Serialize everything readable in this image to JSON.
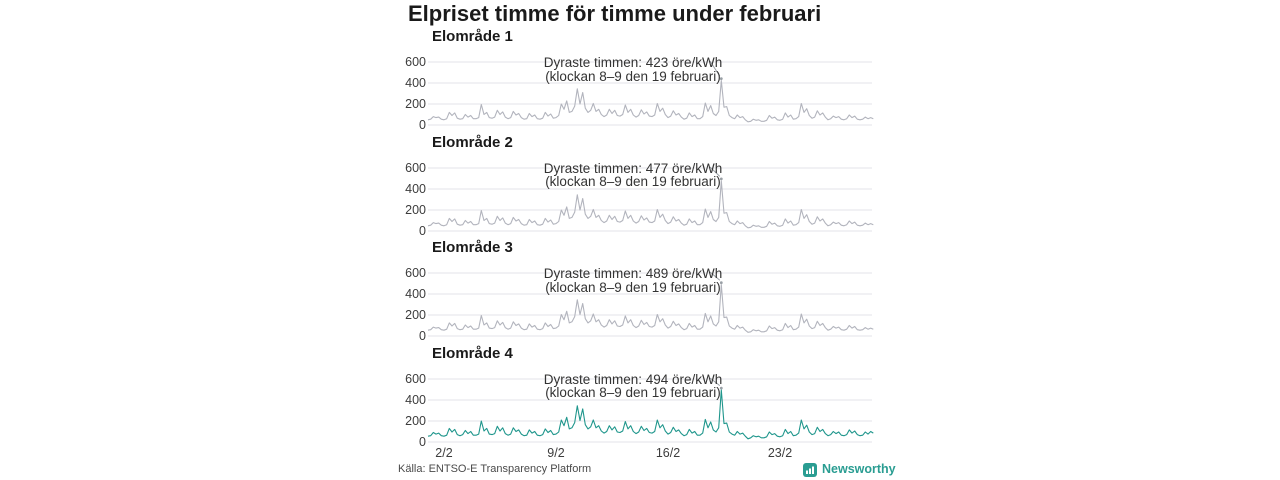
{
  "page": {
    "title": "Elpriset timme för timme under februari"
  },
  "footer": {
    "source": "Källa: ENTSO-E Transparency Platform",
    "brand": "Newsworthy"
  },
  "colors": {
    "background": "#ffffff",
    "grid": "#e3e3e8",
    "line_gray": "#b2b4bd",
    "line_teal": "#1f968c",
    "leader": "#9aa0a6",
    "text_dark": "#1a1a1a",
    "text_annotation": "#333333",
    "text_axis": "#3c3c3c",
    "brand_teal": "#2a9d92"
  },
  "chart_data": [
    {
      "type": "line",
      "title": "Elområde 1",
      "unit": "öre/kWh",
      "line_color": "#b2b4bd",
      "y_ticks": [
        600,
        400,
        200,
        0
      ],
      "ylim": [
        0,
        650
      ],
      "x_start": "1/2",
      "days": 28,
      "points_per_day": 6,
      "x_ticks": [
        {
          "label": "2/2",
          "hour": 24
        },
        {
          "label": "9/2",
          "hour": 192
        },
        {
          "label": "16/2",
          "hour": 360
        },
        {
          "label": "23/2",
          "hour": 528
        }
      ],
      "show_x_axis": false,
      "peak": {
        "value": 423,
        "label_line1": "Dyraste timmen: 423 öre/kWh",
        "label_line2": "(klockan 8–9 den 19 februari)"
      },
      "values": [
        50,
        55,
        80,
        70,
        75,
        55,
        50,
        60,
        120,
        90,
        115,
        65,
        55,
        60,
        100,
        75,
        90,
        60,
        60,
        70,
        195,
        100,
        120,
        70,
        65,
        75,
        140,
        100,
        125,
        75,
        60,
        70,
        130,
        95,
        110,
        70,
        55,
        60,
        110,
        80,
        95,
        60,
        55,
        65,
        120,
        85,
        105,
        65,
        70,
        90,
        200,
        150,
        230,
        120,
        130,
        180,
        345,
        200,
        310,
        160,
        120,
        140,
        205,
        130,
        150,
        100,
        80,
        95,
        150,
        110,
        140,
        90,
        85,
        100,
        190,
        120,
        150,
        95,
        75,
        90,
        145,
        105,
        125,
        85,
        80,
        95,
        205,
        130,
        160,
        100,
        70,
        85,
        135,
        95,
        110,
        75,
        55,
        65,
        115,
        80,
        95,
        60,
        60,
        80,
        210,
        130,
        185,
        110,
        90,
        130,
        423,
        170,
        175,
        90,
        70,
        60,
        95,
        70,
        80,
        50,
        30,
        35,
        55,
        45,
        50,
        35,
        35,
        45,
        90,
        65,
        75,
        50,
        45,
        55,
        115,
        75,
        95,
        55,
        60,
        80,
        205,
        120,
        155,
        90,
        65,
        75,
        135,
        95,
        115,
        75,
        50,
        60,
        85,
        70,
        80,
        55,
        50,
        60,
        95,
        70,
        85,
        55,
        50,
        55,
        75,
        60,
        70,
        60
      ]
    },
    {
      "type": "line",
      "title": "Elområde 2",
      "unit": "öre/kWh",
      "line_color": "#b2b4bd",
      "y_ticks": [
        600,
        400,
        200,
        0
      ],
      "ylim": [
        0,
        650
      ],
      "x_start": "1/2",
      "days": 28,
      "points_per_day": 6,
      "x_ticks": [
        {
          "label": "2/2",
          "hour": 24
        },
        {
          "label": "9/2",
          "hour": 192
        },
        {
          "label": "16/2",
          "hour": 360
        },
        {
          "label": "23/2",
          "hour": 528
        }
      ],
      "show_x_axis": false,
      "peak": {
        "value": 477,
        "label_line1": "Dyraste timmen: 477 öre/kWh",
        "label_line2": "(klockan 8–9 den 19 februari)"
      },
      "values": [
        50,
        55,
        80,
        70,
        75,
        55,
        50,
        60,
        120,
        90,
        115,
        65,
        55,
        60,
        100,
        75,
        90,
        60,
        60,
        70,
        195,
        100,
        120,
        70,
        65,
        75,
        140,
        100,
        125,
        75,
        60,
        70,
        130,
        95,
        110,
        70,
        55,
        60,
        110,
        80,
        95,
        60,
        55,
        65,
        120,
        85,
        105,
        65,
        70,
        90,
        200,
        150,
        230,
        120,
        130,
        180,
        345,
        200,
        310,
        160,
        120,
        140,
        205,
        130,
        150,
        100,
        80,
        95,
        150,
        110,
        140,
        90,
        85,
        100,
        190,
        120,
        150,
        95,
        75,
        90,
        145,
        105,
        125,
        85,
        80,
        95,
        205,
        130,
        160,
        100,
        70,
        85,
        135,
        95,
        110,
        75,
        55,
        65,
        115,
        80,
        95,
        60,
        60,
        80,
        210,
        130,
        185,
        110,
        90,
        130,
        477,
        170,
        175,
        90,
        70,
        60,
        95,
        70,
        80,
        50,
        30,
        35,
        55,
        45,
        50,
        35,
        35,
        45,
        90,
        65,
        75,
        50,
        45,
        55,
        115,
        75,
        95,
        55,
        60,
        80,
        205,
        120,
        155,
        90,
        65,
        75,
        135,
        95,
        115,
        75,
        50,
        60,
        85,
        70,
        80,
        55,
        50,
        60,
        95,
        70,
        85,
        55,
        50,
        55,
        75,
        60,
        70,
        60
      ]
    },
    {
      "type": "line",
      "title": "Elområde 3",
      "unit": "öre/kWh",
      "line_color": "#b2b4bd",
      "y_ticks": [
        600,
        400,
        200,
        0
      ],
      "ylim": [
        0,
        650
      ],
      "x_start": "1/2",
      "days": 28,
      "points_per_day": 6,
      "x_ticks": [
        {
          "label": "2/2",
          "hour": 24
        },
        {
          "label": "9/2",
          "hour": 192
        },
        {
          "label": "16/2",
          "hour": 360
        },
        {
          "label": "23/2",
          "hour": 528
        }
      ],
      "show_x_axis": false,
      "peak": {
        "value": 489,
        "label_line1": "Dyraste timmen: 489 öre/kWh",
        "label_line2": "(klockan 8–9 den 19 februari)"
      },
      "values": [
        55,
        60,
        85,
        75,
        80,
        60,
        55,
        65,
        125,
        95,
        120,
        70,
        60,
        65,
        105,
        80,
        95,
        65,
        65,
        75,
        195,
        105,
        125,
        75,
        70,
        80,
        145,
        105,
        130,
        80,
        65,
        75,
        135,
        100,
        115,
        75,
        60,
        65,
        115,
        85,
        100,
        65,
        60,
        70,
        125,
        90,
        110,
        70,
        75,
        95,
        205,
        155,
        235,
        125,
        135,
        185,
        345,
        205,
        310,
        165,
        125,
        145,
        210,
        135,
        155,
        105,
        85,
        100,
        155,
        115,
        145,
        95,
        90,
        105,
        190,
        125,
        155,
        100,
        80,
        95,
        150,
        110,
        130,
        90,
        85,
        100,
        205,
        135,
        165,
        105,
        75,
        90,
        140,
        100,
        115,
        80,
        60,
        70,
        120,
        85,
        100,
        65,
        65,
        85,
        215,
        135,
        190,
        115,
        95,
        135,
        489,
        175,
        180,
        95,
        75,
        65,
        100,
        75,
        85,
        55,
        35,
        40,
        60,
        50,
        55,
        40,
        40,
        50,
        95,
        70,
        80,
        55,
        50,
        60,
        120,
        80,
        100,
        60,
        65,
        85,
        210,
        125,
        160,
        95,
        70,
        80,
        140,
        100,
        120,
        80,
        55,
        65,
        90,
        75,
        85,
        60,
        55,
        65,
        100,
        75,
        90,
        60,
        55,
        60,
        80,
        65,
        75,
        65
      ]
    },
    {
      "type": "line",
      "title": "Elområde 4",
      "unit": "öre/kWh",
      "line_color": "#1f968c",
      "y_ticks": [
        600,
        400,
        200,
        0
      ],
      "ylim": [
        0,
        650
      ],
      "x_start": "1/2",
      "days": 28,
      "points_per_day": 6,
      "x_ticks": [
        {
          "label": "2/2",
          "hour": 24
        },
        {
          "label": "9/2",
          "hour": 192
        },
        {
          "label": "16/2",
          "hour": 360
        },
        {
          "label": "23/2",
          "hour": 528
        }
      ],
      "show_x_axis": true,
      "peak": {
        "value": 494,
        "label_line1": "Dyraste timmen: 494 öre/kWh",
        "label_line2": "(klockan 8–9 den 19 februari)"
      },
      "values": [
        55,
        60,
        90,
        75,
        85,
        60,
        55,
        65,
        130,
        95,
        120,
        70,
        60,
        70,
        110,
        80,
        100,
        65,
        65,
        75,
        200,
        105,
        130,
        75,
        70,
        80,
        150,
        105,
        135,
        80,
        65,
        75,
        135,
        100,
        115,
        75,
        60,
        65,
        115,
        85,
        100,
        65,
        60,
        70,
        125,
        90,
        110,
        70,
        75,
        95,
        210,
        155,
        235,
        125,
        135,
        185,
        345,
        205,
        315,
        165,
        125,
        145,
        210,
        135,
        155,
        105,
        85,
        100,
        155,
        115,
        145,
        95,
        90,
        105,
        195,
        125,
        155,
        100,
        80,
        95,
        150,
        110,
        130,
        90,
        85,
        100,
        210,
        135,
        165,
        105,
        75,
        90,
        140,
        100,
        115,
        80,
        60,
        70,
        120,
        85,
        100,
        65,
        65,
        85,
        215,
        135,
        190,
        115,
        95,
        135,
        494,
        175,
        180,
        95,
        75,
        65,
        100,
        75,
        85,
        55,
        30,
        40,
        60,
        50,
        55,
        40,
        40,
        50,
        95,
        70,
        80,
        55,
        50,
        60,
        120,
        80,
        100,
        60,
        65,
        85,
        210,
        125,
        160,
        95,
        70,
        80,
        140,
        100,
        120,
        80,
        60,
        70,
        100,
        80,
        95,
        65,
        60,
        70,
        115,
        85,
        105,
        70,
        60,
        65,
        95,
        75,
        100,
        85
      ]
    }
  ]
}
